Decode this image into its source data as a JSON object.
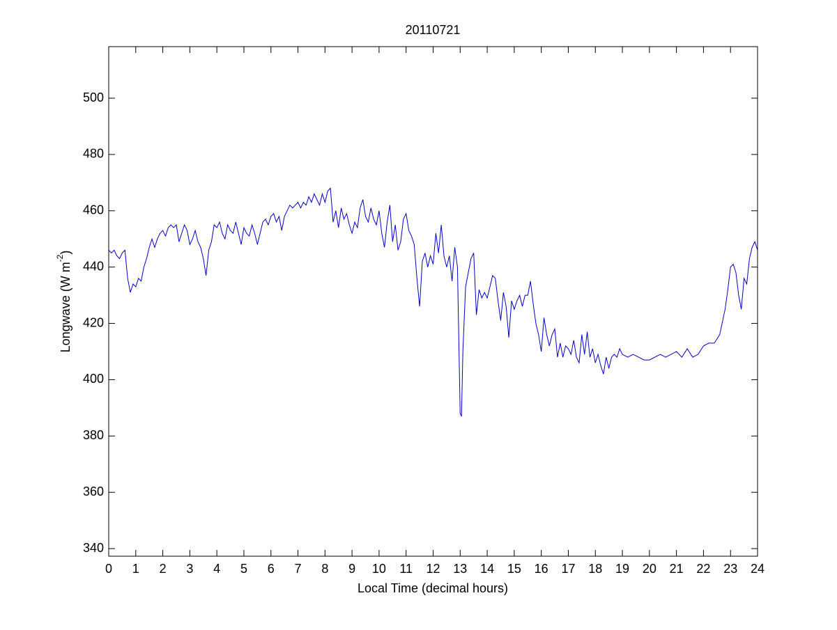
{
  "chart_data": {
    "type": "line",
    "title": "20110721",
    "xlabel": "Local Time (decimal hours)",
    "ylabel": [
      "Longwave (W m",
      "-2",
      ")"
    ],
    "xlim": [
      0,
      24
    ],
    "xticks": [
      0,
      1,
      2,
      3,
      4,
      5,
      6,
      7,
      8,
      9,
      10,
      11,
      12,
      13,
      14,
      15,
      16,
      17,
      18,
      19,
      20,
      21,
      22,
      23,
      24
    ],
    "ylim": [
      337.3,
      518.3
    ],
    "yticks": [
      340,
      360,
      380,
      400,
      420,
      440,
      460,
      480,
      500
    ],
    "series": [
      {
        "color": "#0000cc",
        "x": [
          0,
          0.1,
          0.2,
          0.3,
          0.4,
          0.5,
          0.6,
          0.7,
          0.8,
          0.9,
          1.0,
          1.1,
          1.2,
          1.3,
          1.4,
          1.5,
          1.6,
          1.7,
          1.8,
          1.9,
          2.0,
          2.1,
          2.2,
          2.3,
          2.4,
          2.5,
          2.6,
          2.7,
          2.8,
          2.9,
          3.0,
          3.1,
          3.2,
          3.3,
          3.4,
          3.5,
          3.6,
          3.7,
          3.8,
          3.9,
          4.0,
          4.1,
          4.2,
          4.3,
          4.4,
          4.5,
          4.6,
          4.7,
          4.8,
          4.9,
          5.0,
          5.1,
          5.2,
          5.3,
          5.4,
          5.5,
          5.6,
          5.7,
          5.8,
          5.9,
          6.0,
          6.1,
          6.2,
          6.3,
          6.4,
          6.5,
          6.6,
          6.7,
          6.8,
          6.9,
          7.0,
          7.1,
          7.2,
          7.3,
          7.4,
          7.5,
          7.6,
          7.7,
          7.8,
          7.9,
          8.0,
          8.1,
          8.2,
          8.3,
          8.4,
          8.5,
          8.6,
          8.7,
          8.8,
          8.9,
          9.0,
          9.1,
          9.2,
          9.3,
          9.4,
          9.5,
          9.6,
          9.7,
          9.8,
          9.9,
          10.0,
          10.1,
          10.2,
          10.3,
          10.4,
          10.5,
          10.6,
          10.7,
          10.8,
          10.9,
          11.0,
          11.1,
          11.2,
          11.3,
          11.4,
          11.5,
          11.6,
          11.7,
          11.8,
          11.9,
          12.0,
          12.1,
          12.2,
          12.3,
          12.4,
          12.5,
          12.6,
          12.7,
          12.8,
          12.9,
          13.0,
          13.05,
          13.1,
          13.2,
          13.3,
          13.4,
          13.5,
          13.6,
          13.7,
          13.8,
          13.9,
          14.0,
          14.1,
          14.2,
          14.3,
          14.4,
          14.5,
          14.6,
          14.7,
          14.8,
          14.9,
          15.0,
          15.1,
          15.2,
          15.3,
          15.4,
          15.5,
          15.6,
          15.7,
          15.8,
          15.9,
          16.0,
          16.1,
          16.2,
          16.3,
          16.4,
          16.5,
          16.6,
          16.7,
          16.8,
          16.9,
          17.0,
          17.1,
          17.2,
          17.3,
          17.4,
          17.5,
          17.6,
          17.7,
          17.8,
          17.9,
          18.0,
          18.1,
          18.2,
          18.3,
          18.4,
          18.5,
          18.6,
          18.7,
          18.8,
          18.9,
          19.0,
          19.2,
          19.4,
          19.6,
          19.8,
          20.0,
          20.2,
          20.4,
          20.6,
          20.8,
          21.0,
          21.2,
          21.4,
          21.6,
          21.8,
          22.0,
          22.2,
          22.4,
          22.6,
          22.8,
          22.9,
          23.0,
          23.1,
          23.2,
          23.3,
          23.4,
          23.5,
          23.6,
          23.7,
          23.8,
          23.9,
          24.0
        ],
        "values": [
          446,
          445,
          446,
          444,
          443,
          445,
          446,
          436,
          431,
          434,
          433,
          436,
          435,
          440,
          443,
          447,
          450,
          447,
          450,
          452,
          453,
          451,
          454,
          455,
          454,
          455,
          449,
          452,
          455,
          453,
          448,
          450,
          453,
          449,
          447,
          443,
          437,
          446,
          449,
          455,
          454,
          456,
          452,
          450,
          455,
          453,
          452,
          456,
          452,
          448,
          454,
          452,
          451,
          455,
          452,
          448,
          452,
          456,
          457,
          455,
          458,
          459,
          456,
          458,
          453,
          458,
          460,
          462,
          461,
          462,
          463,
          461,
          463,
          462,
          465,
          463,
          466,
          464,
          462,
          466,
          463,
          467,
          468,
          456,
          460,
          454,
          461,
          457,
          459,
          455,
          452,
          456,
          454,
          461,
          464,
          458,
          456,
          461,
          457,
          455,
          460,
          452,
          447,
          456,
          462,
          449,
          455,
          446,
          449,
          457,
          459,
          453,
          451,
          448,
          436,
          426,
          442,
          445,
          440,
          444,
          441,
          452,
          445,
          455,
          444,
          440,
          444,
          435,
          447,
          440,
          388,
          387,
          410,
          433,
          438,
          443,
          445,
          423,
          432,
          429,
          431,
          429,
          433,
          437,
          436,
          428,
          421,
          431,
          426,
          415,
          428,
          425,
          428,
          430,
          426,
          430,
          430,
          435,
          427,
          420,
          416,
          410,
          422,
          416,
          412,
          416,
          418,
          408,
          413,
          408,
          412,
          411,
          409,
          414,
          408,
          406,
          416,
          409,
          417,
          408,
          411,
          406,
          409,
          405,
          402,
          408,
          404,
          408,
          409,
          408,
          411,
          409,
          408,
          409,
          408,
          407,
          407,
          408,
          409,
          408,
          409,
          410,
          408,
          411,
          408,
          409,
          412,
          413,
          413,
          416,
          425,
          432,
          440,
          441,
          438,
          430,
          425,
          436,
          434,
          443,
          447,
          449,
          446
        ]
      }
    ]
  }
}
